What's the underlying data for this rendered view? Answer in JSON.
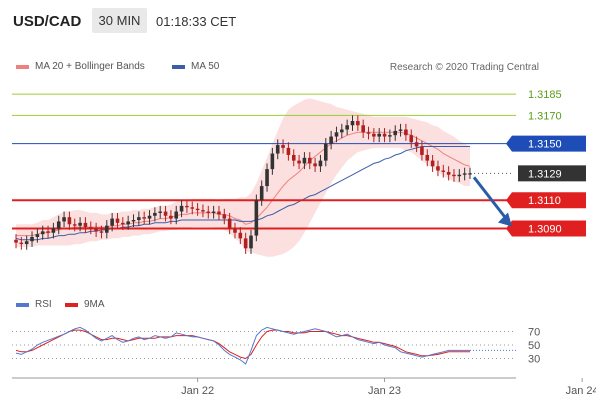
{
  "header": {
    "pair": "USD/CAD",
    "timeframe": "30 MIN",
    "time": "01:18:33 CET"
  },
  "legend": {
    "bollinger_label": "MA 20 + Bollinger Bands",
    "ma50_label": "MA 50",
    "credit": "Research © 2020 Trading Central",
    "rsi_label": "RSI",
    "ma9_label": "9MA"
  },
  "colors": {
    "bollinger": "#f08080",
    "ma50": "#3a5ea8",
    "resistance": "#9acd32",
    "pivot": "#1e4db7",
    "support": "#e02020",
    "last_price": "#333333",
    "candle_up": "#333333",
    "candle_down": "#b02020",
    "rsi": "#5577cc",
    "rsi_ma": "#dd2222",
    "arrow": "#2a5ca8"
  },
  "chart_data": [
    {
      "type": "candlestick",
      "ylim": [
        1.3055,
        1.3195
      ],
      "levels": [
        {
          "value": 1.3185,
          "label": "1.3185",
          "kind": "resistance"
        },
        {
          "value": 1.317,
          "label": "1.3170",
          "kind": "resistance"
        },
        {
          "value": 1.315,
          "label": "1.3150",
          "kind": "pivot"
        },
        {
          "value": 1.3129,
          "label": "1.3129",
          "kind": "last"
        },
        {
          "value": 1.311,
          "label": "1.3110",
          "kind": "support"
        },
        {
          "value": 1.309,
          "label": "1.3090",
          "kind": "support"
        }
      ],
      "x_ticks": [
        "Jan 22",
        "Jan 23",
        "Jan 24"
      ],
      "tick_positions": [
        34,
        69,
        106
      ],
      "close": [
        1.308,
        1.3079,
        1.3081,
        1.3084,
        1.3086,
        1.3088,
        1.3087,
        1.309,
        1.3095,
        1.3098,
        1.3093,
        1.3092,
        1.3094,
        1.3091,
        1.309,
        1.3088,
        1.3087,
        1.3092,
        1.3097,
        1.3094,
        1.3093,
        1.3095,
        1.3096,
        1.3098,
        1.3097,
        1.3099,
        1.3101,
        1.3102,
        1.3099,
        1.3097,
        1.3102,
        1.3106,
        1.3105,
        1.3104,
        1.3103,
        1.3102,
        1.3101,
        1.3102,
        1.31,
        1.3097,
        1.309,
        1.3087,
        1.3083,
        1.3076,
        1.3085,
        1.311,
        1.312,
        1.3132,
        1.3143,
        1.3149,
        1.3147,
        1.3142,
        1.3138,
        1.3136,
        1.314,
        1.3136,
        1.3134,
        1.3138,
        1.315,
        1.3155,
        1.3158,
        1.316,
        1.3163,
        1.3166,
        1.3163,
        1.3158,
        1.3157,
        1.3155,
        1.3157,
        1.3155,
        1.3156,
        1.3159,
        1.316,
        1.3156,
        1.3151,
        1.3148,
        1.3142,
        1.3138,
        1.3134,
        1.3131,
        1.313,
        1.3128,
        1.3127,
        1.3128,
        1.3129,
        1.3129
      ],
      "bollinger_mid": [
        1.3085,
        1.3085,
        1.3085,
        1.3085,
        1.3086,
        1.3087,
        1.3087,
        1.3088,
        1.3089,
        1.309,
        1.309,
        1.3091,
        1.3091,
        1.3091,
        1.3091,
        1.3091,
        1.3091,
        1.3091,
        1.3092,
        1.3092,
        1.3093,
        1.3093,
        1.3094,
        1.3094,
        1.3095,
        1.3095,
        1.3096,
        1.3097,
        1.3097,
        1.3098,
        1.3099,
        1.31,
        1.31,
        1.3101,
        1.3101,
        1.3101,
        1.3101,
        1.3101,
        1.31,
        1.31,
        1.3099,
        1.3097,
        1.3096,
        1.3093,
        1.3094,
        1.3097,
        1.3101,
        1.3105,
        1.311,
        1.3115,
        1.312,
        1.3124,
        1.3127,
        1.313,
        1.3134,
        1.3138,
        1.3141,
        1.3144,
        1.3147,
        1.315,
        1.3152,
        1.3154,
        1.3156,
        1.3157,
        1.3158,
        1.3158,
        1.3158,
        1.3158,
        1.3158,
        1.3158,
        1.3158,
        1.3158,
        1.3158,
        1.3157,
        1.3156,
        1.3154,
        1.3152,
        1.315,
        1.3148,
        1.3146,
        1.3143,
        1.3141,
        1.3139,
        1.3137,
        1.3135,
        1.3134
      ],
      "bollinger_width": [
        0.0008,
        0.0008,
        0.0008,
        0.0008,
        0.0008,
        0.0009,
        0.0009,
        0.001,
        0.0011,
        0.0012,
        0.0012,
        0.0012,
        0.0012,
        0.0011,
        0.001,
        0.001,
        0.0009,
        0.0009,
        0.0009,
        0.0009,
        0.0009,
        0.0009,
        0.0009,
        0.0009,
        0.0009,
        0.0009,
        0.0009,
        0.0009,
        0.0009,
        0.0009,
        0.001,
        0.001,
        0.001,
        0.001,
        0.001,
        0.001,
        0.001,
        0.001,
        0.001,
        0.0011,
        0.0012,
        0.0014,
        0.0016,
        0.0019,
        0.0021,
        0.0025,
        0.003,
        0.0035,
        0.004,
        0.0044,
        0.0048,
        0.005,
        0.005,
        0.0049,
        0.0047,
        0.0044,
        0.004,
        0.0036,
        0.0032,
        0.0028,
        0.0024,
        0.0021,
        0.0018,
        0.0016,
        0.0014,
        0.0013,
        0.0012,
        0.0011,
        0.0011,
        0.0011,
        0.0011,
        0.0011,
        0.0011,
        0.0012,
        0.0012,
        0.0013,
        0.0014,
        0.0015,
        0.0015,
        0.0016,
        0.0016,
        0.0016,
        0.0016,
        0.0015,
        0.0015,
        0.0014
      ],
      "ma50": [
        1.3083,
        1.3082,
        1.3082,
        1.3082,
        1.3082,
        1.3083,
        1.3083,
        1.3084,
        1.3085,
        1.3085,
        1.3086,
        1.3086,
        1.3087,
        1.3087,
        1.3088,
        1.3088,
        1.3089,
        1.3089,
        1.309,
        1.309,
        1.3091,
        1.3091,
        1.3092,
        1.3092,
        1.3093,
        1.3093,
        1.3094,
        1.3094,
        1.3094,
        1.3095,
        1.3095,
        1.3096,
        1.3096,
        1.3096,
        1.3096,
        1.3096,
        1.3096,
        1.3096,
        1.3096,
        1.3096,
        1.3096,
        1.3096,
        1.3095,
        1.3095,
        1.3095,
        1.3096,
        1.3097,
        1.3099,
        1.31,
        1.3102,
        1.3104,
        1.3106,
        1.3107,
        1.3109,
        1.3111,
        1.3113,
        1.3114,
        1.3116,
        1.3118,
        1.312,
        1.3122,
        1.3124,
        1.3126,
        1.3128,
        1.313,
        1.3132,
        1.3134,
        1.3136,
        1.3137,
        1.3139,
        1.314,
        1.3142,
        1.3143,
        1.3145,
        1.3146,
        1.3147,
        1.3148,
        1.3148,
        1.3148,
        1.3148,
        1.3148,
        1.3148,
        1.3148,
        1.3148,
        1.3148,
        1.3148
      ],
      "forecast": {
        "from": 1.3129,
        "to": 1.309
      }
    },
    {
      "type": "line",
      "ylim": [
        10,
        90
      ],
      "y_ticks": [
        70,
        50,
        30
      ],
      "rsi": [
        38,
        36,
        40,
        44,
        50,
        54,
        57,
        60,
        63,
        66,
        70,
        74,
        76,
        72,
        66,
        60,
        56,
        60,
        64,
        58,
        54,
        56,
        60,
        62,
        58,
        60,
        64,
        62,
        60,
        62,
        68,
        66,
        64,
        62,
        62,
        60,
        58,
        56,
        50,
        42,
        36,
        32,
        28,
        22,
        42,
        64,
        72,
        76,
        74,
        72,
        70,
        68,
        66,
        68,
        70,
        72,
        74,
        72,
        70,
        66,
        62,
        64,
        66,
        62,
        58,
        56,
        54,
        52,
        54,
        50,
        48,
        46,
        40,
        38,
        36,
        34,
        32,
        34,
        36,
        38,
        40,
        42,
        42,
        42,
        42,
        42
      ],
      "rsi_ma": [
        42,
        40,
        40,
        42,
        46,
        50,
        54,
        58,
        62,
        66,
        70,
        72,
        72,
        70,
        66,
        62,
        58,
        58,
        60,
        60,
        58,
        56,
        58,
        60,
        60,
        60,
        60,
        62,
        62,
        62,
        64,
        64,
        64,
        64,
        62,
        60,
        58,
        56,
        52,
        46,
        40,
        36,
        32,
        30,
        36,
        50,
        62,
        70,
        72,
        72,
        70,
        70,
        68,
        68,
        68,
        70,
        70,
        70,
        70,
        68,
        66,
        64,
        64,
        62,
        60,
        58,
        56,
        54,
        54,
        52,
        50,
        48,
        44,
        40,
        38,
        36,
        34,
        34,
        35,
        36,
        38,
        40,
        40,
        40,
        40,
        40
      ]
    }
  ]
}
